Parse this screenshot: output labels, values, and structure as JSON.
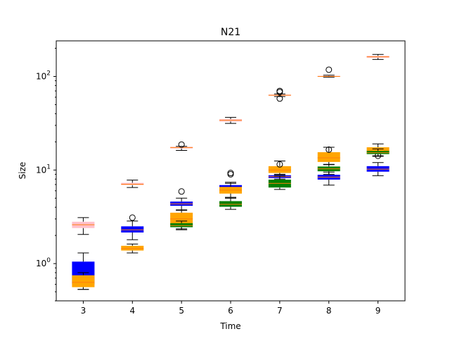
{
  "chart_data": {
    "type": "box",
    "title": "N21",
    "xlabel": "Time",
    "ylabel": "Size",
    "yscale": "log",
    "ylim": [
      0.4,
      240
    ],
    "categories": [
      "3",
      "4",
      "5",
      "6",
      "7",
      "8",
      "9"
    ],
    "y_ticks": [
      {
        "value": 1,
        "base": "10",
        "exp": "0"
      },
      {
        "value": 10,
        "base": "10",
        "exp": "1"
      },
      {
        "value": 100,
        "base": "10",
        "exp": "2"
      }
    ],
    "grid": false,
    "legend": "none",
    "colors": {
      "pink": "#ffc0cb",
      "blue": "#0000ff",
      "orange": "#ffa500",
      "green": "#008000",
      "median": "#ff7f0e",
      "whisker": "#000000"
    },
    "series": [
      {
        "color": "pink",
        "boxes": [
          {
            "x": "3",
            "q1": 2.4,
            "median": 2.6,
            "q3": 2.8,
            "whislo": 2.05,
            "whishi": 3.1,
            "fliers": []
          },
          {
            "x": "4",
            "q1": 6.9,
            "median": 7.05,
            "q3": 7.3,
            "whislo": 6.5,
            "whishi": 7.8,
            "fliers": []
          },
          {
            "x": "5",
            "q1": 17.0,
            "median": 17.4,
            "q3": 17.7,
            "whislo": 16.2,
            "whishi": 17.9,
            "fliers": [
              18.7
            ]
          },
          {
            "x": "6",
            "q1": 33.0,
            "median": 34.0,
            "q3": 35.0,
            "whislo": 31.5,
            "whishi": 36.5,
            "fliers": []
          },
          {
            "x": "7",
            "q1": 62.0,
            "median": 63.0,
            "q3": 64.0,
            "whislo": 61.0,
            "whishi": 65.0,
            "fliers": [
              70,
              68,
              58
            ]
          },
          {
            "x": "8",
            "q1": 99.0,
            "median": 100.0,
            "q3": 101.5,
            "whislo": 98.0,
            "whishi": 103.0,
            "fliers": [
              118
            ]
          },
          {
            "x": "9",
            "q1": 158.0,
            "median": 162.0,
            "q3": 166.0,
            "whislo": 152.0,
            "whishi": 172.0,
            "fliers": []
          }
        ]
      },
      {
        "color": "blue",
        "boxes": [
          {
            "x": "3",
            "q1": 0.6,
            "median": 0.72,
            "q3": 1.05,
            "whislo": 0.53,
            "whishi": 1.3,
            "fliers": []
          },
          {
            "x": "4",
            "q1": 2.15,
            "median": 2.3,
            "q3": 2.5,
            "whislo": 1.8,
            "whishi": 2.85,
            "fliers": [
              3.1
            ]
          },
          {
            "x": "5",
            "q1": 4.15,
            "median": 4.35,
            "q3": 4.6,
            "whislo": 3.75,
            "whishi": 5.0,
            "fliers": [
              5.9
            ]
          },
          {
            "x": "6",
            "q1": 5.9,
            "median": 6.4,
            "q3": 6.9,
            "whislo": 5.1,
            "whishi": 7.4,
            "fliers": [
              9.0,
              9.3
            ]
          },
          {
            "x": "7",
            "q1": 8.2,
            "median": 8.5,
            "q3": 8.8,
            "whislo": 8.0,
            "whishi": 9.0,
            "fliers": []
          },
          {
            "x": "8",
            "q1": 7.9,
            "median": 8.4,
            "q3": 8.9,
            "whislo": 6.9,
            "whishi": 9.5,
            "fliers": []
          },
          {
            "x": "9",
            "q1": 9.6,
            "median": 10.2,
            "q3": 11.0,
            "whislo": 8.7,
            "whishi": 12.0,
            "fliers": []
          }
        ]
      },
      {
        "color": "orange",
        "boxes": [
          {
            "x": "3",
            "q1": 0.56,
            "median": 0.63,
            "q3": 0.75,
            "whislo": 0.53,
            "whishi": 0.8,
            "fliers": []
          },
          {
            "x": "4",
            "q1": 1.38,
            "median": 1.45,
            "q3": 1.55,
            "whislo": 1.3,
            "whishi": 1.62,
            "fliers": []
          },
          {
            "x": "5",
            "q1": 2.6,
            "median": 3.0,
            "q3": 3.5,
            "whislo": 2.35,
            "whishi": 3.7,
            "fliers": []
          },
          {
            "x": "6",
            "q1": 5.6,
            "median": 6.1,
            "q3": 6.6,
            "whislo": 5.1,
            "whishi": 7.2,
            "fliers": []
          },
          {
            "x": "7",
            "q1": 9.3,
            "median": 10.0,
            "q3": 11.0,
            "whislo": 8.9,
            "whishi": 12.5,
            "fliers": [
              11.5
            ]
          },
          {
            "x": "8",
            "q1": 12.2,
            "median": 13.5,
            "q3": 15.5,
            "whislo": 11.5,
            "whishi": 17.5,
            "fliers": [
              16.5
            ]
          },
          {
            "x": "9",
            "q1": 15.0,
            "median": 16.0,
            "q3": 17.5,
            "whislo": 14.0,
            "whishi": 19.0,
            "fliers": [
              14.2
            ]
          }
        ]
      },
      {
        "color": "green",
        "boxes": [
          {
            "x": "3",
            "q1": null,
            "median": null,
            "q3": null,
            "whislo": null,
            "whishi": null,
            "fliers": []
          },
          {
            "x": "4",
            "q1": null,
            "median": null,
            "q3": null,
            "whislo": null,
            "whishi": null,
            "fliers": []
          },
          {
            "x": "5",
            "q1": 2.45,
            "median": 2.55,
            "q3": 2.7,
            "whislo": 2.3,
            "whishi": 2.85,
            "fliers": []
          },
          {
            "x": "6",
            "q1": 4.05,
            "median": 4.3,
            "q3": 4.65,
            "whislo": 3.8,
            "whishi": 5.0,
            "fliers": []
          },
          {
            "x": "7",
            "q1": 6.5,
            "median": 7.2,
            "q3": 7.9,
            "whislo": 6.2,
            "whishi": 8.6,
            "fliers": []
          },
          {
            "x": "8",
            "q1": 9.7,
            "median": 10.3,
            "q3": 10.9,
            "whislo": 9.0,
            "whishi": 11.4,
            "fliers": []
          },
          {
            "x": "9",
            "q1": 14.8,
            "median": 15.3,
            "q3": 16.0,
            "whislo": 14.2,
            "whishi": 16.8,
            "fliers": []
          }
        ]
      }
    ]
  }
}
